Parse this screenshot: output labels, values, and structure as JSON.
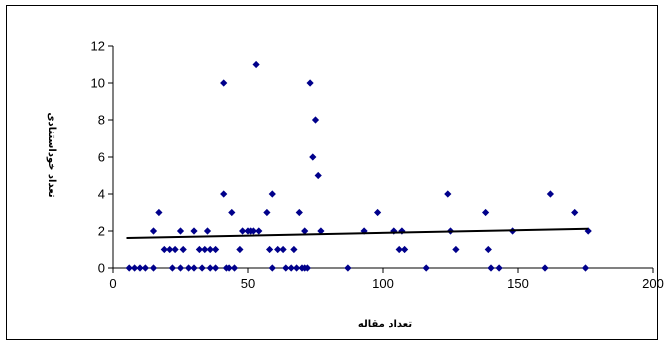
{
  "chart_data": {
    "type": "scatter",
    "title": "",
    "xlabel": "تعداد مقاله",
    "ylabel": "تعداد خوداستنادی",
    "xlim": [
      0,
      200
    ],
    "ylim": [
      0,
      12
    ],
    "x_ticks": [
      0,
      50,
      100,
      150,
      200
    ],
    "y_ticks": [
      0,
      2,
      4,
      6,
      8,
      10,
      12
    ],
    "x_tick_labels": [
      "0",
      "50",
      "100",
      "150",
      "200"
    ],
    "y_tick_labels": [
      "0",
      "2",
      "4",
      "6",
      "8",
      "10",
      "12"
    ],
    "grid": false,
    "legend": "none",
    "marker_color": "#00008b",
    "trendline_color": "#000000",
    "series": [
      {
        "marker": "diamond",
        "points": [
          [
            6,
            0
          ],
          [
            8,
            0
          ],
          [
            10,
            0
          ],
          [
            12,
            0
          ],
          [
            15,
            0
          ],
          [
            15,
            2
          ],
          [
            17,
            3
          ],
          [
            19,
            1
          ],
          [
            21,
            1
          ],
          [
            22,
            0
          ],
          [
            23,
            1
          ],
          [
            25,
            0
          ],
          [
            25,
            2
          ],
          [
            26,
            1
          ],
          [
            28,
            0
          ],
          [
            30,
            2
          ],
          [
            30,
            0
          ],
          [
            32,
            1
          ],
          [
            33,
            0
          ],
          [
            34,
            1
          ],
          [
            35,
            2
          ],
          [
            36,
            0
          ],
          [
            36,
            1
          ],
          [
            38,
            1
          ],
          [
            38,
            0
          ],
          [
            41,
            10
          ],
          [
            41,
            4
          ],
          [
            42,
            0
          ],
          [
            43,
            0
          ],
          [
            44,
            3
          ],
          [
            45,
            0
          ],
          [
            47,
            1
          ],
          [
            48,
            2
          ],
          [
            50,
            2
          ],
          [
            51,
            2
          ],
          [
            52,
            2
          ],
          [
            53,
            11
          ],
          [
            54,
            2
          ],
          [
            57,
            3
          ],
          [
            58,
            1
          ],
          [
            59,
            0
          ],
          [
            59,
            4
          ],
          [
            61,
            1
          ],
          [
            63,
            1
          ],
          [
            64,
            0
          ],
          [
            66,
            0
          ],
          [
            67,
            1
          ],
          [
            68,
            0
          ],
          [
            69,
            3
          ],
          [
            70,
            0
          ],
          [
            71,
            0
          ],
          [
            71,
            2
          ],
          [
            72,
            0
          ],
          [
            73,
            10
          ],
          [
            74,
            6
          ],
          [
            75,
            8
          ],
          [
            76,
            5
          ],
          [
            77,
            2
          ],
          [
            87,
            0
          ],
          [
            93,
            2
          ],
          [
            98,
            3
          ],
          [
            104,
            2
          ],
          [
            106,
            1
          ],
          [
            107,
            2
          ],
          [
            108,
            1
          ],
          [
            116,
            0
          ],
          [
            124,
            4
          ],
          [
            125,
            2
          ],
          [
            127,
            1
          ],
          [
            138,
            3
          ],
          [
            139,
            1
          ],
          [
            140,
            0
          ],
          [
            143,
            0
          ],
          [
            148,
            2
          ],
          [
            160,
            0
          ],
          [
            162,
            4
          ],
          [
            171,
            3
          ],
          [
            175,
            0
          ],
          [
            176,
            2
          ]
        ]
      }
    ],
    "trendline": {
      "type": "linear",
      "x": [
        5,
        176
      ],
      "y": [
        1.62,
        2.12
      ]
    }
  }
}
